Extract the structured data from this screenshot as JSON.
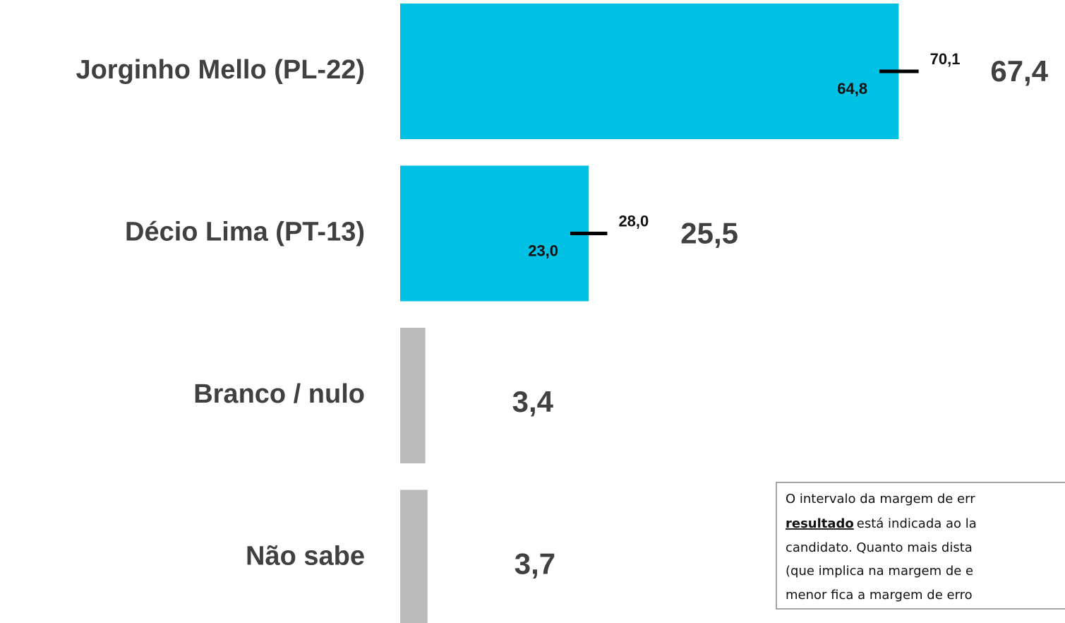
{
  "chart_data": {
    "type": "bar",
    "orientation": "horizontal",
    "categories": [
      "Jorginho Mello (PL-22)",
      "Décio Lima (PT-13)",
      "Branco / nulo",
      "Não sabe"
    ],
    "values": [
      67.4,
      25.5,
      3.4,
      3.7
    ],
    "value_labels": [
      "67,4",
      "25,5",
      "3,4",
      "3,7"
    ],
    "colors": [
      "#00c1e4",
      "#00c1e4",
      "#bbbbbb",
      "#bbbbbb"
    ],
    "error_low": [
      64.8,
      23.0,
      null,
      null
    ],
    "error_low_labels": [
      "64,8",
      "23,0",
      null,
      null
    ],
    "error_high": [
      70.1,
      28.0,
      null,
      null
    ],
    "error_high_labels": [
      "70,1",
      "28,0",
      null,
      null
    ]
  },
  "note": {
    "lines": [
      "O intervalo da margem de err",
      "está indicada ao la",
      "candidato. Quanto mais dista",
      "(que implica na margem de e",
      "menor fica a margem de erro"
    ],
    "emphasis": "resultado"
  }
}
